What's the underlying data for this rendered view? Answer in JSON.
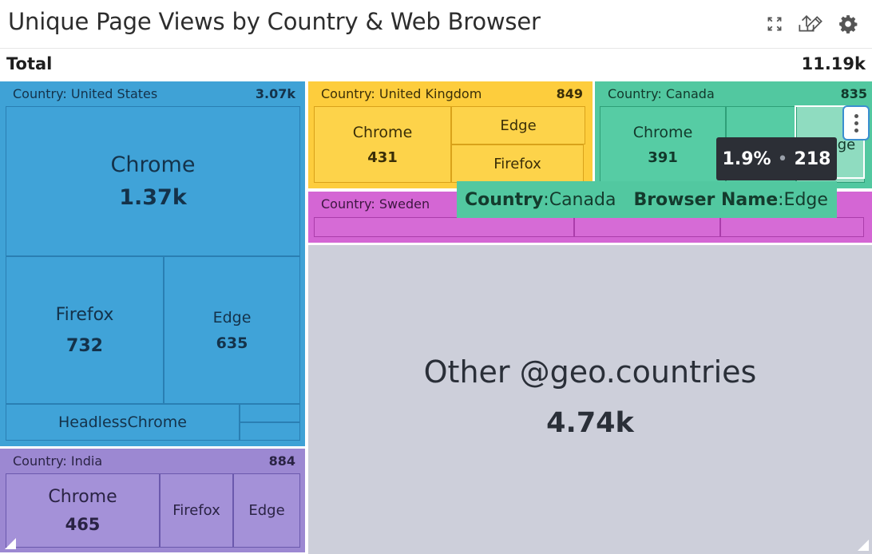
{
  "widget": {
    "title": "Unique Page Views by Country & Web Browser",
    "total_label": "Total",
    "total_value": "11.19k",
    "header_icons": [
      "expand-icon",
      "export-icon",
      "edit-icon",
      "settings-icon"
    ]
  },
  "treemap": {
    "groups": [
      {
        "label": "Country: United States",
        "value": "3.07k",
        "color": "#3fa2d6",
        "cells": [
          {
            "name": "Chrome",
            "value": "1.37k"
          },
          {
            "name": "Firefox",
            "value": "732"
          },
          {
            "name": "Edge",
            "value": "635"
          },
          {
            "name": "HeadlessChrome",
            "value": ""
          }
        ]
      },
      {
        "label": "Country: India",
        "value": "884",
        "color": "#9c88d2",
        "cells": [
          {
            "name": "Chrome",
            "value": "465"
          },
          {
            "name": "Firefox",
            "value": ""
          },
          {
            "name": "Edge",
            "value": ""
          }
        ]
      },
      {
        "label": "Country: United Kingdom",
        "value": "849",
        "color": "#fdcd3d",
        "cells": [
          {
            "name": "Chrome",
            "value": "431"
          },
          {
            "name": "Edge",
            "value": ""
          },
          {
            "name": "Firefox",
            "value": ""
          }
        ]
      },
      {
        "label": "Country: Canada",
        "value": "835",
        "color": "#52c8a0",
        "cells": [
          {
            "name": "Chrome",
            "value": "391"
          }
        ]
      },
      {
        "label": "Country: Sweden",
        "value": "",
        "color": "#d466d4",
        "cells": []
      }
    ],
    "other": {
      "label": "Other @geo.countries",
      "value": "4.74k",
      "color": "#cdcfda"
    }
  },
  "tooltip": {
    "percent": "1.9%",
    "count": "218",
    "country_key": "Country",
    "country_value": "Canada",
    "browser_key": "Browser Name",
    "browser_value": "Edge",
    "hidden_cell_fragment": "ge"
  }
}
